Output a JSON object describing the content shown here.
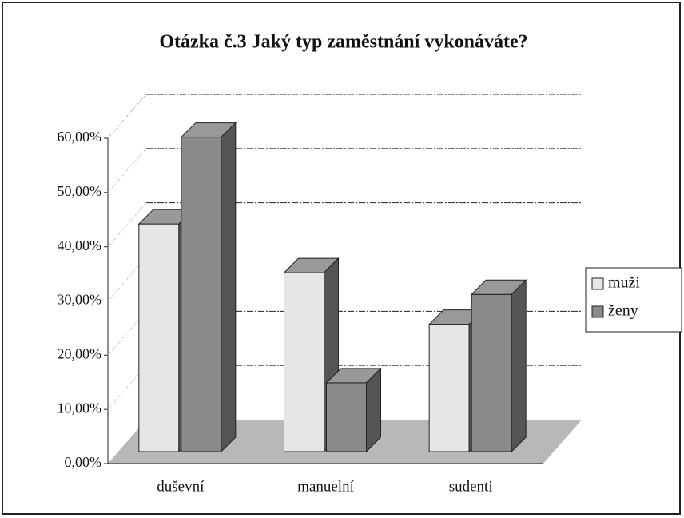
{
  "chart_data": {
    "type": "bar3d",
    "title": "Otázka č.3 Jaký typ zaměstnání vykonáváte?",
    "categories": [
      "duševní",
      "manuelní",
      "sudenti"
    ],
    "series": [
      {
        "name": "muži",
        "color": "#e6e6e6",
        "values": [
          42,
          33,
          23.5
        ]
      },
      {
        "name": "ženy",
        "color": "#8a8a8a",
        "values": [
          58,
          12.7,
          29
        ]
      }
    ],
    "ylim": [
      0,
      60
    ],
    "yticks": [
      {
        "value": 0,
        "label": "0,00%"
      },
      {
        "value": 10,
        "label": "10,00%"
      },
      {
        "value": 20,
        "label": "20,00%"
      },
      {
        "value": 30,
        "label": "30,00%"
      },
      {
        "value": 40,
        "label": "40,00%"
      },
      {
        "value": 50,
        "label": "50,00%"
      },
      {
        "value": 60,
        "label": "60,00%"
      }
    ],
    "grid": true,
    "legend": "right"
  }
}
